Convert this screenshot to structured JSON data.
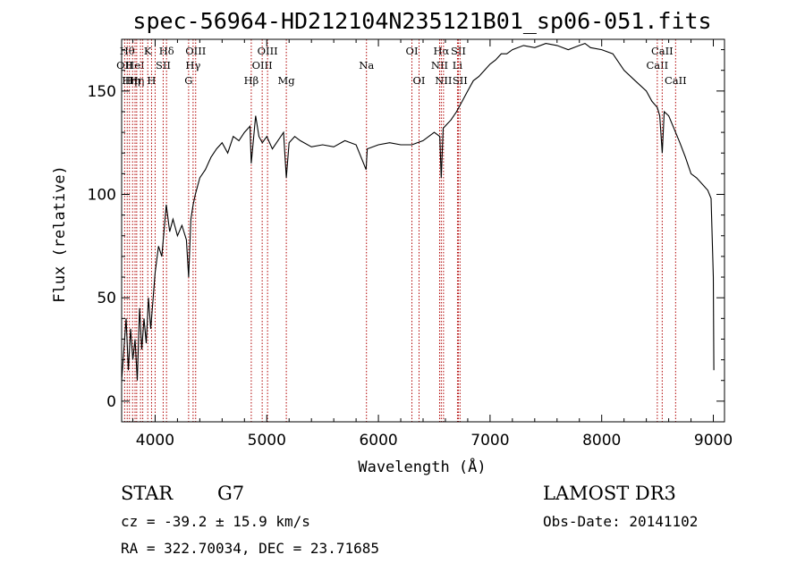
{
  "chart_data": {
    "type": "line",
    "title": "spec-56964-HD212104N235121B01_sp06-051.fits",
    "xlabel": "Wavelength (Å)",
    "ylabel": "Flux (relative)",
    "xlim": [
      3700,
      9100
    ],
    "ylim": [
      -10,
      175
    ],
    "xticks": [
      4000,
      5000,
      6000,
      7000,
      8000,
      9000
    ],
    "xtick_labels": [
      "4000",
      "5000",
      "6000",
      "7000",
      "8000",
      "9000"
    ],
    "yticks": [
      0,
      50,
      100,
      150
    ],
    "ytick_labels": [
      "0",
      "50",
      "100",
      "150"
    ],
    "grid": false,
    "series": [
      {
        "name": "flux",
        "x": [
          3700,
          3720,
          3740,
          3760,
          3780,
          3800,
          3820,
          3840,
          3860,
          3880,
          3900,
          3920,
          3940,
          3960,
          3980,
          4000,
          4030,
          4060,
          4100,
          4130,
          4160,
          4200,
          4240,
          4280,
          4300,
          4320,
          4340,
          4360,
          4400,
          4450,
          4500,
          4550,
          4600,
          4650,
          4700,
          4750,
          4800,
          4850,
          4861,
          4900,
          4930,
          4960,
          5000,
          5050,
          5100,
          5150,
          5175,
          5200,
          5250,
          5300,
          5400,
          5500,
          5600,
          5700,
          5800,
          5890,
          5900,
          6000,
          6100,
          6200,
          6300,
          6400,
          6500,
          6550,
          6563,
          6580,
          6650,
          6700,
          6750,
          6800,
          6850,
          6900,
          6950,
          7000,
          7050,
          7100,
          7150,
          7200,
          7300,
          7400,
          7500,
          7600,
          7700,
          7800,
          7850,
          7900,
          8000,
          8100,
          8200,
          8300,
          8400,
          8450,
          8498,
          8520,
          8542,
          8560,
          8600,
          8662,
          8700,
          8750,
          8800,
          8850,
          8900,
          8950,
          8980,
          9000,
          9005
        ],
        "y": [
          10,
          25,
          40,
          15,
          35,
          20,
          30,
          10,
          45,
          25,
          40,
          28,
          50,
          35,
          48,
          62,
          75,
          70,
          95,
          82,
          88,
          80,
          85,
          78,
          60,
          88,
          95,
          100,
          108,
          112,
          118,
          122,
          125,
          120,
          128,
          126,
          130,
          133,
          115,
          138,
          128,
          125,
          128,
          122,
          126,
          130,
          108,
          125,
          128,
          126,
          123,
          124,
          123,
          126,
          124,
          112,
          122,
          124,
          125,
          124,
          124,
          126,
          130,
          128,
          108,
          132,
          136,
          140,
          145,
          150,
          155,
          157,
          160,
          163,
          165,
          168,
          168,
          170,
          172,
          171,
          173,
          172,
          170,
          172,
          173,
          171,
          170,
          168,
          160,
          155,
          150,
          145,
          142,
          138,
          120,
          140,
          138,
          130,
          125,
          118,
          110,
          108,
          105,
          102,
          98,
          60,
          15
        ]
      }
    ],
    "lines": [
      {
        "w": 3727,
        "label": "OII",
        "row": 1
      },
      {
        "w": 3750,
        "label": "Hθ",
        "row": 0
      },
      {
        "w": 3770,
        "label": "Hη",
        "row": 2
      },
      {
        "w": 3798,
        "label": "Hη",
        "row": 2
      },
      {
        "w": 3820,
        "label": "HeI",
        "row": 1
      },
      {
        "w": 3835,
        "label": "Hη",
        "row": 2
      },
      {
        "w": 3869,
        "label": "",
        "row": 0
      },
      {
        "w": 3889,
        "label": "",
        "row": 0
      },
      {
        "w": 3934,
        "label": "K",
        "row": 0
      },
      {
        "w": 3968,
        "label": "H",
        "row": 2
      },
      {
        "w": 4000,
        "label": "",
        "row": 0
      },
      {
        "w": 4072,
        "label": "SII",
        "row": 1
      },
      {
        "w": 4102,
        "label": "Hδ",
        "row": 0
      },
      {
        "w": 4300,
        "label": "G",
        "row": 2
      },
      {
        "w": 4340,
        "label": "Hγ",
        "row": 1
      },
      {
        "w": 4363,
        "label": "OIII",
        "row": 0
      },
      {
        "w": 4861,
        "label": "Hβ",
        "row": 2
      },
      {
        "w": 4959,
        "label": "OIII",
        "row": 1
      },
      {
        "w": 5007,
        "label": "OIII",
        "row": 0
      },
      {
        "w": 5175,
        "label": "Mg",
        "row": 2
      },
      {
        "w": 5893,
        "label": "Na",
        "row": 1
      },
      {
        "w": 6300,
        "label": "OI",
        "row": 0
      },
      {
        "w": 6364,
        "label": "OI",
        "row": 2
      },
      {
        "w": 6548,
        "label": "NII",
        "row": 1
      },
      {
        "w": 6563,
        "label": "Hα",
        "row": 0
      },
      {
        "w": 6583,
        "label": "NII",
        "row": 2
      },
      {
        "w": 6708,
        "label": "Li",
        "row": 1
      },
      {
        "w": 6716,
        "label": "SII",
        "row": 0
      },
      {
        "w": 6731,
        "label": "SII",
        "row": 2
      },
      {
        "w": 8498,
        "label": "CaII",
        "row": 1
      },
      {
        "w": 8542,
        "label": "CaII",
        "row": 0
      },
      {
        "w": 8662,
        "label": "CaII",
        "row": 2
      }
    ]
  },
  "info": {
    "object_type": "STAR",
    "subclass": "G7",
    "survey": "LAMOST DR3",
    "cz": "cz = -39.2 ± 15.9 km/s",
    "obs_date": "Obs-Date: 20141102",
    "coords": "RA = 322.70034, DEC =  23.71685"
  }
}
